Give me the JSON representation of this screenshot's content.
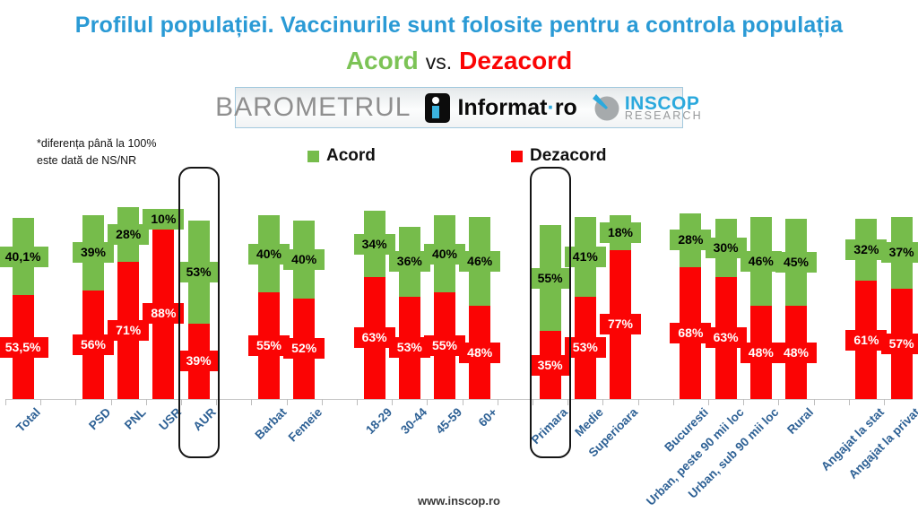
{
  "title": "Profilul populației. Vaccinurile sunt folosite pentru a controla populația",
  "subtitle": {
    "acord": "Acord",
    "vs": "vs.",
    "dezacord": "Dezacord"
  },
  "banner": {
    "barometrul": "BAROMETRUL",
    "informat": "Informat",
    "dot": "·",
    "ro": "ro",
    "inscop": "INSCOP",
    "research": "RESEARCH"
  },
  "note": {
    "line1": "*diferența până la 100%",
    "line2": "este dată de NS/NR"
  },
  "legend": {
    "acord": "Acord",
    "dezacord": "Dezacord"
  },
  "footer": {
    "url": "www.inscop.ro"
  },
  "colors": {
    "title_blue": "#2A9AD5",
    "acord_green": "#76BC4B",
    "dezacord_red": "#FB0404",
    "category_label_blue": "#2E6195",
    "inscop_cyan": "#2BA9DD",
    "barometrul_gray": "#8F8F8F",
    "highlight_border": "#151515",
    "axis_gray": "#C8C8C8"
  },
  "chart_data": {
    "type": "bar",
    "subtype": "stacked-column",
    "title": "Profilul populației. Vaccinurile sunt folosite pentru a controla populația",
    "categories": [
      "Total",
      "PSD",
      "PNL",
      "USR",
      "AUR",
      "Barbat",
      "Femeie",
      "18-29",
      "30-44",
      "45-59",
      "60+",
      "Primara",
      "Medie",
      "Superioara",
      "Bucuresti",
      "Urban, peste 90 mii loc",
      "Urban, sub 90 mii loc",
      "Rural",
      "Angajat la stat",
      "Angajat la privat"
    ],
    "groups": [
      1,
      4,
      2,
      4,
      3,
      4,
      2
    ],
    "series": [
      {
        "name": "Acord",
        "color": "#76BC4B",
        "label_text_color": "#000000",
        "values": [
          40.1,
          39,
          28,
          10,
          53,
          40,
          40,
          34,
          36,
          40,
          46,
          55,
          41,
          18,
          28,
          30,
          46,
          45,
          32,
          37
        ],
        "labels": [
          "40,1%",
          "39%",
          "28%",
          "10%",
          "53%",
          "40%",
          "40%",
          "34%",
          "36%",
          "40%",
          "46%",
          "55%",
          "41%",
          "18%",
          "28%",
          "30%",
          "46%",
          "45%",
          "32%",
          "37%"
        ]
      },
      {
        "name": "Dezacord",
        "color": "#FB0404",
        "label_text_color": "#FFFFFF",
        "values": [
          53.5,
          56,
          71,
          88,
          39,
          55,
          52,
          63,
          53,
          55,
          48,
          35,
          53,
          77,
          68,
          63,
          48,
          48,
          61,
          57
        ],
        "labels": [
          "53,5%",
          "56%",
          "71%",
          "88%",
          "39%",
          "55%",
          "52%",
          "63%",
          "53%",
          "55%",
          "48%",
          "35%",
          "53%",
          "77%",
          "68%",
          "63%",
          "48%",
          "48%",
          "61%",
          "57%"
        ]
      }
    ],
    "stack_order_bottom_to_top": [
      "Dezacord",
      "Acord"
    ],
    "highlighted": [
      "AUR",
      "Primara"
    ],
    "ylim": [
      0,
      100
    ],
    "grid": false,
    "legend_position": "top-center",
    "note": "*diferența până la 100% este dată de NS/NR"
  }
}
